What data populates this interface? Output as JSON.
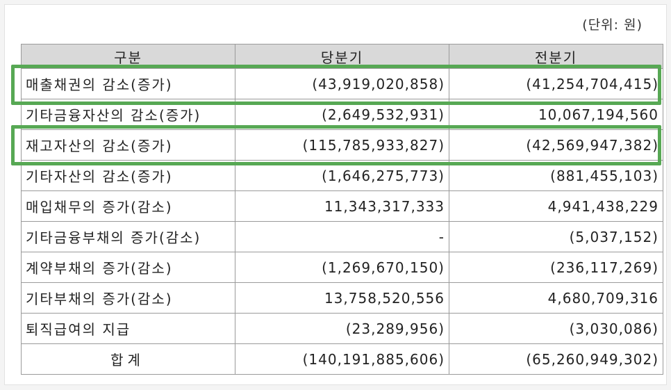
{
  "unit_label": "(단위: 원)",
  "headers": [
    "구분",
    "당분기",
    "전분기"
  ],
  "rows": [
    {
      "label": "매출채권의 감소(증가)",
      "current": "(43,919,020,858)",
      "previous": "(41,254,704,415)",
      "highlighted": true
    },
    {
      "label": "기타금융자산의 감소(증가)",
      "current": "(2,649,532,931)",
      "previous": "10,067,194,560",
      "highlighted": false
    },
    {
      "label": "재고자산의 감소(증가)",
      "current": "(115,785,933,827)",
      "previous": "(42,569,947,382)",
      "highlighted": true
    },
    {
      "label": "기타자산의 감소(증가)",
      "current": "(1,646,275,773)",
      "previous": "(881,455,103)",
      "highlighted": false
    },
    {
      "label": "매입채무의 증가(감소)",
      "current": "11,343,317,333",
      "previous": "4,941,438,229",
      "highlighted": false
    },
    {
      "label": "기타금융부채의 증가(감소)",
      "current": "-",
      "previous": "(5,037,152)",
      "highlighted": false
    },
    {
      "label": "계약부채의 증가(감소)",
      "current": "(1,269,670,150)",
      "previous": "(236,117,269)",
      "highlighted": false
    },
    {
      "label": "기타부채의 증가(감소)",
      "current": "13,758,520,556",
      "previous": "4,680,709,316",
      "highlighted": false
    },
    {
      "label": "퇴직급여의 지급",
      "current": "(23,289,956)",
      "previous": "(3,030,086)",
      "highlighted": false
    }
  ],
  "total": {
    "label": "합계",
    "current": "(140,191,885,606)",
    "previous": "(65,260,949,302)"
  },
  "highlight_color": "#57a854"
}
